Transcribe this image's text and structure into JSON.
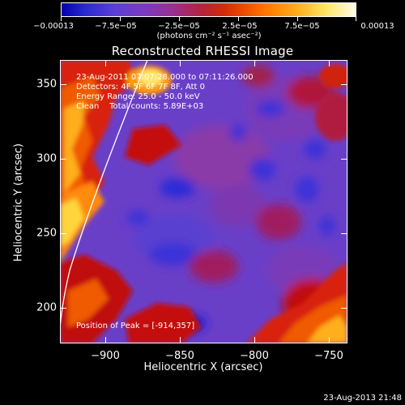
{
  "colorbar": {
    "ticks": [
      "−0.00013",
      "−7.5e−05",
      "−2.5e−05",
      "2.5e−05",
      "7.5e−05",
      "0.00013"
    ],
    "units": "(photons cm⁻² s⁻¹ asec⁻²)"
  },
  "title": "Reconstructed RHESSI Image",
  "info": {
    "time": "23-Aug-2011 07:07:28.000 to 07:11:26.000",
    "detectors": "Detectors: 4F 5F 6F 7F 8F, Att 0",
    "energy": "Energy Range: 25.0 - 50.0 keV",
    "clean": "Clean    Total counts: 5.89E+03",
    "peak": "Position of Peak = [-914,357]"
  },
  "axes": {
    "xlabel": "Heliocentric X (arcsec)",
    "ylabel": "Heliocentric Y (arcsec)",
    "xticks": [
      "−900",
      "−850",
      "−800",
      "−750"
    ],
    "yticks": [
      "350",
      "300",
      "250",
      "200"
    ]
  },
  "timestamp": "23-Aug-2013 21:48",
  "colors": {
    "background": "#000000",
    "blue": "#1a1ad8",
    "violet": "#6a3fc8",
    "magenta": "#8e2f90",
    "red": "#c4100a",
    "orange": "#f05a00",
    "yellow": "#ffd53a",
    "white": "#fffbe8"
  }
}
